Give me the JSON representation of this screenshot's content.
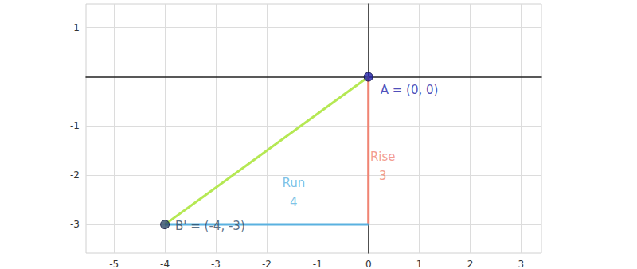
{
  "chart_data": {
    "type": "line",
    "xlim": [
      -5.55,
      3.4
    ],
    "ylim": [
      -3.58,
      1.48
    ],
    "xticks": [
      -5,
      -4,
      -3,
      -2,
      -1,
      0,
      1,
      2,
      3
    ],
    "yticks": [
      -3,
      -2,
      -1,
      1
    ],
    "grid": true,
    "series": [
      {
        "color": "#b5e853",
        "x": [
          -4,
          0
        ],
        "values": [
          -3,
          0
        ]
      },
      {
        "label": "Rise",
        "length": 3,
        "color": "#f08473",
        "x": [
          0,
          0
        ],
        "values": [
          0,
          -3
        ]
      },
      {
        "label": "Run",
        "length": 4,
        "color": "#5ab1e0",
        "x": [
          -4,
          0
        ],
        "values": [
          -3,
          -3
        ]
      }
    ],
    "points": [
      {
        "label": "A = (0, 0)",
        "x": 0,
        "y": 0,
        "color": "#1f1fa8"
      },
      {
        "label": "B' = (-4, -3)",
        "x": -4,
        "y": -3,
        "color": "#2e4a66"
      }
    ]
  }
}
